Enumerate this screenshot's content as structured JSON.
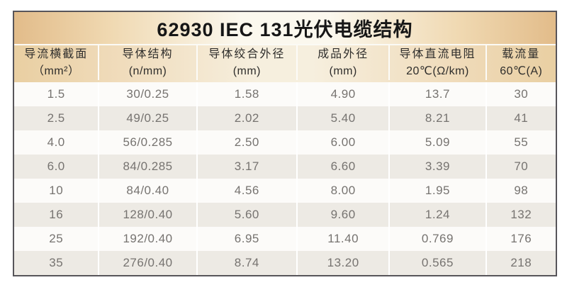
{
  "title": "62930 IEC 131光伏电缆结构",
  "table": {
    "columns": [
      {
        "line1": "导流横截面",
        "line2": "（mm²）"
      },
      {
        "line1": "导体结构",
        "line2": "(n/mm)"
      },
      {
        "line1": "导体绞合外径",
        "line2": "(mm)"
      },
      {
        "line1": "成品外径",
        "line2": "(mm)"
      },
      {
        "line1": "导体直流电阻",
        "line2": "20℃(Ω/km)"
      },
      {
        "line1": "载流量",
        "line2": "60℃(A)"
      }
    ],
    "rows": [
      [
        "1.5",
        "30/0.25",
        "1.58",
        "4.90",
        "13.7",
        "30"
      ],
      [
        "2.5",
        "49/0.25",
        "2.02",
        "5.40",
        "8.21",
        "41"
      ],
      [
        "4.0",
        "56/0.285",
        "2.50",
        "6.00",
        "5.09",
        "55"
      ],
      [
        "6.0",
        "84/0.285",
        "3.17",
        "6.60",
        "3.39",
        "70"
      ],
      [
        "10",
        "84/0.40",
        "4.56",
        "8.00",
        "1.95",
        "98"
      ],
      [
        "16",
        "128/0.40",
        "5.60",
        "9.60",
        "1.24",
        "132"
      ],
      [
        "25",
        "192/0.40",
        "6.95",
        "11.40",
        "0.769",
        "176"
      ],
      [
        "35",
        "276/0.40",
        "8.74",
        "13.20",
        "0.565",
        "218"
      ]
    ]
  },
  "colors": {
    "gold-edge": "#e2bc8a",
    "cream-center": "#fbf8ee",
    "gold-header": "#e9cfa2",
    "cream-header": "#f6efde",
    "row-light": "#fcfbf9",
    "row-shaded": "#edeae4",
    "border-dark": "#57555a",
    "title-text": "#161616",
    "header-text": "#2e2d2b",
    "cell-text": "#767370"
  }
}
